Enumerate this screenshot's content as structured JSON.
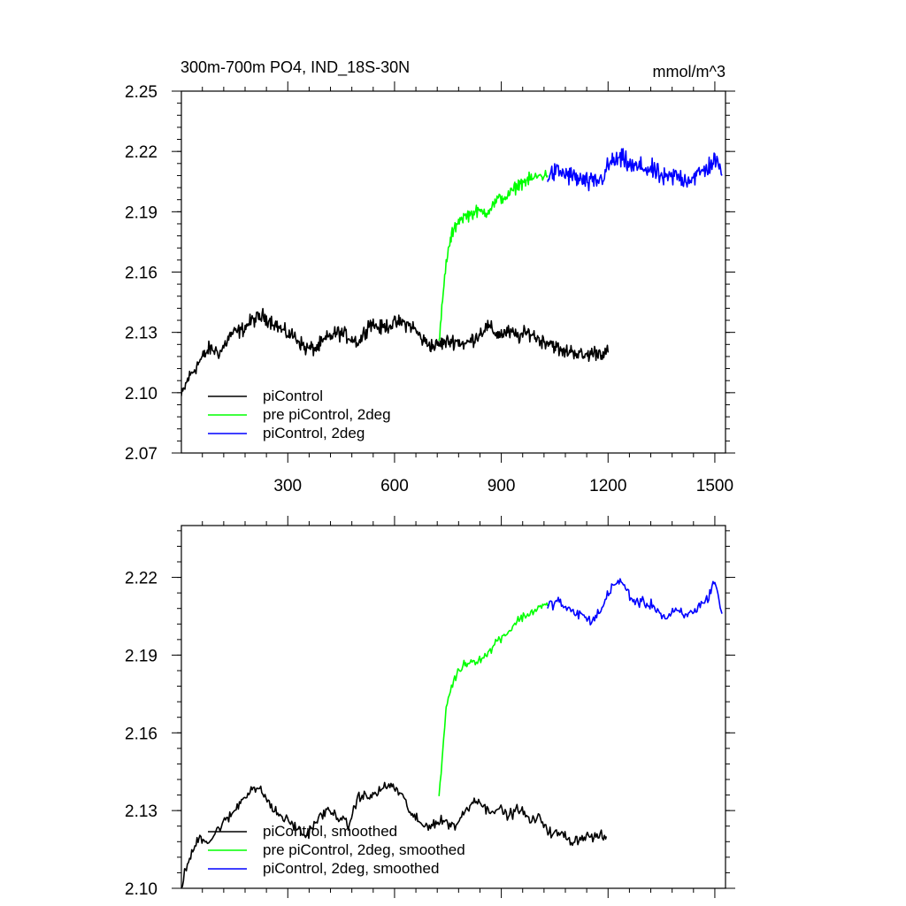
{
  "chart_data": [
    {
      "type": "line",
      "title": "300m-700m PO4, IND_18S-30N",
      "units": "mmol/m^3",
      "xlabel": "",
      "ylabel": "",
      "xlim": [
        1,
        1530
      ],
      "ylim": [
        2.07,
        2.25
      ],
      "x_ticks": [
        300,
        600,
        900,
        1200,
        1500
      ],
      "x_tick_labels": [
        "300",
        "600",
        "900",
        "1200",
        "1500"
      ],
      "y_ticks": [
        2.07,
        2.1,
        2.13,
        2.16,
        2.19,
        2.22,
        2.25
      ],
      "y_tick_labels": [
        "2.07",
        "2.10",
        "2.13",
        "2.16",
        "2.19",
        "2.22",
        "2.25"
      ],
      "legend_position": "bottom-left",
      "series": [
        {
          "name": "piControl",
          "color": "#000000",
          "x": [
            1,
            20,
            50,
            80,
            110,
            140,
            170,
            200,
            230,
            260,
            290,
            320,
            350,
            380,
            410,
            440,
            470,
            500,
            530,
            560,
            590,
            620,
            650,
            680,
            710,
            740,
            770,
            800,
            830,
            860,
            890,
            920,
            950,
            980,
            1010,
            1040,
            1070,
            1100,
            1130,
            1160,
            1200
          ],
          "values": [
            2.098,
            2.107,
            2.115,
            2.122,
            2.12,
            2.129,
            2.131,
            2.136,
            2.138,
            2.135,
            2.13,
            2.128,
            2.122,
            2.122,
            2.127,
            2.13,
            2.128,
            2.125,
            2.135,
            2.132,
            2.134,
            2.135,
            2.133,
            2.126,
            2.123,
            2.125,
            2.126,
            2.124,
            2.128,
            2.133,
            2.129,
            2.13,
            2.128,
            2.13,
            2.126,
            2.125,
            2.12,
            2.121,
            2.118,
            2.12,
            2.12
          ]
        },
        {
          "name": "pre piControl, 2deg",
          "color": "#00ff00",
          "x": [
            725,
            735,
            745,
            760,
            780,
            800,
            830,
            860,
            890,
            920,
            950,
            980,
            1010,
            1030
          ],
          "values": [
            2.125,
            2.145,
            2.165,
            2.178,
            2.186,
            2.188,
            2.19,
            2.19,
            2.196,
            2.198,
            2.204,
            2.206,
            2.208,
            2.208
          ]
        },
        {
          "name": "piControl, 2deg",
          "color": "#0000ff",
          "x": [
            1030,
            1060,
            1090,
            1120,
            1150,
            1180,
            1210,
            1240,
            1270,
            1300,
            1330,
            1360,
            1390,
            1420,
            1450,
            1480,
            1500,
            1520
          ],
          "values": [
            2.208,
            2.21,
            2.208,
            2.206,
            2.204,
            2.206,
            2.215,
            2.216,
            2.212,
            2.212,
            2.21,
            2.206,
            2.208,
            2.206,
            2.208,
            2.212,
            2.216,
            2.208
          ]
        }
      ]
    },
    {
      "type": "line",
      "title": "",
      "xlabel": "",
      "ylabel": "",
      "xlim": [
        1,
        1530
      ],
      "ylim": [
        2.1,
        2.24
      ],
      "x_ticks": [
        300,
        600,
        900,
        1200,
        1500
      ],
      "y_ticks": [
        2.1,
        2.13,
        2.16,
        2.19,
        2.22
      ],
      "y_tick_labels": [
        "2.10",
        "2.13",
        "2.16",
        "2.19",
        "2.22"
      ],
      "legend_position": "bottom-left",
      "series": [
        {
          "name": "piControl, smoothed",
          "color": "#000000",
          "x": [
            1,
            15,
            30,
            50,
            80,
            110,
            140,
            170,
            200,
            230,
            260,
            290,
            320,
            350,
            380,
            410,
            440,
            470,
            500,
            530,
            560,
            590,
            620,
            650,
            680,
            710,
            740,
            770,
            800,
            830,
            860,
            890,
            920,
            950,
            980,
            1010,
            1040,
            1070,
            1100,
            1130,
            1160,
            1195
          ],
          "values": [
            2.101,
            2.108,
            2.113,
            2.12,
            2.118,
            2.124,
            2.128,
            2.134,
            2.139,
            2.137,
            2.13,
            2.127,
            2.124,
            2.12,
            2.126,
            2.13,
            2.128,
            2.124,
            2.136,
            2.135,
            2.138,
            2.14,
            2.136,
            2.128,
            2.124,
            2.125,
            2.126,
            2.124,
            2.13,
            2.135,
            2.13,
            2.131,
            2.128,
            2.131,
            2.126,
            2.127,
            2.121,
            2.121,
            2.118,
            2.12,
            2.12,
            2.12
          ]
        },
        {
          "name": "pre piControl, 2deg, smoothed",
          "color": "#00ff00",
          "x": [
            725,
            735,
            745,
            760,
            780,
            800,
            830,
            860,
            890,
            920,
            950,
            980,
            1010,
            1030
          ],
          "values": [
            2.134,
            2.152,
            2.17,
            2.178,
            2.184,
            2.187,
            2.188,
            2.19,
            2.196,
            2.199,
            2.204,
            2.206,
            2.209,
            2.209
          ]
        },
        {
          "name": "piControl, 2deg, smoothed",
          "color": "#0000ff",
          "x": [
            1030,
            1060,
            1090,
            1120,
            1150,
            1180,
            1210,
            1240,
            1270,
            1300,
            1330,
            1360,
            1390,
            1420,
            1450,
            1480,
            1500,
            1520
          ],
          "values": [
            2.209,
            2.211,
            2.207,
            2.206,
            2.203,
            2.207,
            2.217,
            2.218,
            2.211,
            2.21,
            2.209,
            2.204,
            2.207,
            2.205,
            2.208,
            2.212,
            2.219,
            2.206
          ]
        }
      ]
    }
  ]
}
